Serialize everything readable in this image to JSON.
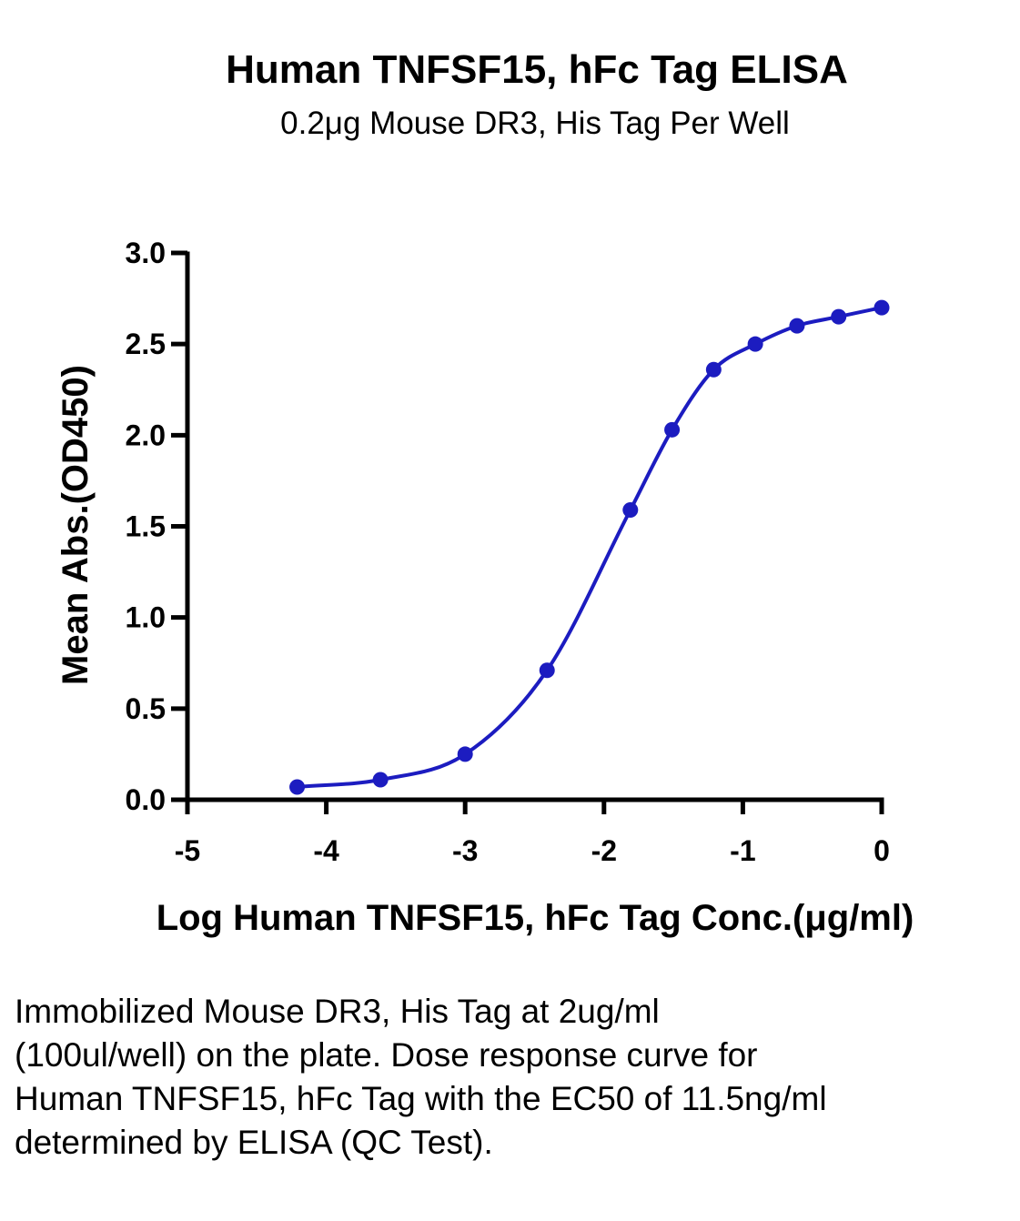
{
  "chart_data": {
    "type": "scatter",
    "title": "Human TNFSF15, hFc Tag ELISA",
    "subtitle": "0.2μg Mouse DR3, His Tag Per Well",
    "xlabel": "Log Human TNFSF15, hFc Tag Conc.(μg/ml)",
    "ylabel": "Mean Abs.(OD450)",
    "xlim": [
      -5,
      0
    ],
    "ylim": [
      0,
      3.0
    ],
    "x_ticks": [
      "-5",
      "-4",
      "-3",
      "-2",
      "-1",
      "0"
    ],
    "y_ticks": [
      "0.0",
      "0.5",
      "1.0",
      "1.5",
      "2.0",
      "2.5",
      "3.0"
    ],
    "series": [
      {
        "color": "#1c1cc0",
        "fit": "sigmoidal 4PL curve",
        "x": [
          -4.21,
          -3.61,
          -3.0,
          -2.41,
          -1.81,
          -1.51,
          -1.21,
          -0.91,
          -0.61,
          -0.31,
          0.0
        ],
        "y": [
          0.07,
          0.11,
          0.25,
          0.71,
          1.59,
          2.03,
          2.36,
          2.5,
          2.6,
          2.65,
          2.7
        ]
      }
    ],
    "grid": false,
    "legend": "none"
  },
  "caption": "Immobilized Mouse DR3, His Tag at 2ug/ml (100ul/well) on the plate. Dose response curve for Human TNFSF15, hFc Tag with the EC50 of 11.5ng/ml determined by ELISA (QC Test)."
}
